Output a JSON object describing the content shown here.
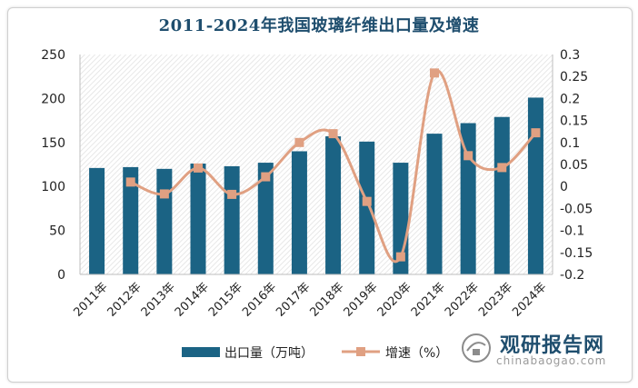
{
  "chart_data": {
    "type": "bar",
    "title": "2011-2024年我国玻璃纤维出口量及增速",
    "categories": [
      "2011年",
      "2012年",
      "2013年",
      "2014年",
      "2015年",
      "2016年",
      "2017年",
      "2018年",
      "2019年",
      "2020年",
      "2021年",
      "2022年",
      "2023年",
      "2024年"
    ],
    "series": [
      {
        "name": "出口量（万吨）",
        "type": "bar",
        "axis": "left",
        "color": "#1b6384",
        "values": [
          121,
          122,
          120,
          126,
          123,
          127,
          140,
          157,
          151,
          127,
          160,
          172,
          179,
          201
        ]
      },
      {
        "name": "增速（%）",
        "type": "line",
        "axis": "right",
        "color": "#e0a082",
        "values": [
          null,
          0.01,
          -0.017,
          0.042,
          -0.018,
          0.022,
          0.1,
          0.12,
          -0.034,
          -0.16,
          0.258,
          0.07,
          0.043,
          0.122
        ]
      }
    ],
    "ylim_left": [
      0,
      250
    ],
    "ylim_right": [
      -0.2,
      0.3
    ],
    "yticks_left": [
      "0",
      "50",
      "100",
      "150",
      "200",
      "250"
    ],
    "yticks_right": [
      "-0.2",
      "-0.15",
      "-0.1",
      "-0.05",
      "0",
      "0.05",
      "0.1",
      "0.15",
      "0.2",
      "0.25",
      "0.3"
    ],
    "legend_position": "bottom",
    "grid": false
  },
  "watermark": {
    "name": "观研报告网",
    "url": "chinabaogao.com"
  }
}
